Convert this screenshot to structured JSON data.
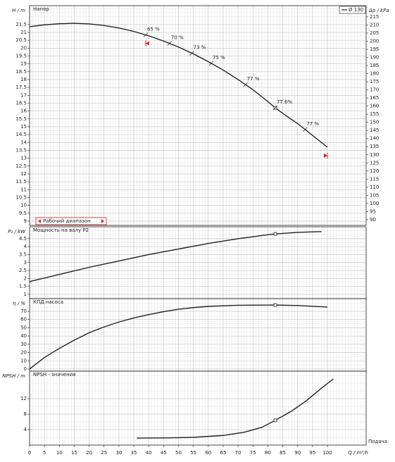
{
  "chart_data": [
    {
      "type": "line",
      "title": "Напор",
      "y_label": "H / m",
      "y2_label": "Δp / kPa",
      "x": [
        0,
        5,
        10,
        15,
        20,
        25,
        30,
        35,
        40,
        45,
        50,
        55,
        60,
        65,
        70,
        75,
        80,
        82.5,
        85,
        90,
        95,
        100
      ],
      "series": [
        {
          "name": "Ø 130",
          "color": "#222222",
          "values": [
            21.36,
            21.48,
            21.55,
            21.58,
            21.54,
            21.44,
            21.28,
            21.06,
            20.78,
            20.45,
            20.07,
            19.63,
            19.14,
            18.6,
            18.0,
            17.35,
            16.6,
            16.2,
            15.85,
            15.2,
            14.45,
            13.7
          ]
        }
      ],
      "ylim": [
        8.73,
        22.7
      ],
      "yticks": [
        9,
        9.5,
        10,
        10.5,
        11,
        11.5,
        12,
        12.5,
        13,
        13.5,
        14,
        14.5,
        15,
        15.5,
        16,
        16.5,
        17,
        17.5,
        18,
        18.5,
        19,
        19.5,
        20,
        20.5,
        21,
        21.5
      ],
      "y2lim": [
        86.5,
        221.9
      ],
      "y2ticks": [
        90,
        95,
        100,
        105,
        110,
        115,
        120,
        125,
        130,
        135,
        140,
        145,
        150,
        155,
        160,
        165,
        170,
        175,
        180,
        185,
        190,
        195,
        200,
        205,
        210,
        215
      ],
      "annotations": [
        {
          "text": "65 %",
          "x": 39
        },
        {
          "text": "70 %",
          "x": 47
        },
        {
          "text": "73 %",
          "x": 54.5
        },
        {
          "text": "75 %",
          "x": 61
        },
        {
          "text": "77 %",
          "x": 72.5
        },
        {
          "text": "77.6%",
          "x": 82.5
        },
        {
          "text": "77 %",
          "x": 92.5
        }
      ],
      "operating_range": {
        "label": "Рабочий диапазон",
        "x": [
          39,
          100
        ],
        "color": "#e02020"
      },
      "duty_point": 82.5,
      "grid": true,
      "minor_grid": true
    },
    {
      "type": "line",
      "title": "Мощность на валу P2",
      "y_label": "P₂ / kW",
      "x": [
        0,
        10,
        20,
        30,
        40,
        50,
        60,
        70,
        80,
        82.5,
        90,
        98
      ],
      "series": [
        {
          "color": "#222222",
          "values": [
            1.8,
            2.25,
            2.7,
            3.1,
            3.5,
            3.85,
            4.2,
            4.5,
            4.75,
            4.8,
            4.9,
            4.95
          ]
        }
      ],
      "ylim": [
        0.73,
        5.25
      ],
      "yticks": [
        1,
        1.5,
        2,
        2.5,
        3,
        3.5,
        4,
        4.5
      ],
      "duty_point": 82.5,
      "grid": true,
      "minor_grid": true
    },
    {
      "type": "line",
      "title": "КПД насоса",
      "y_label": "η / %",
      "x": [
        0,
        5,
        10,
        15,
        20,
        25,
        30,
        35,
        40,
        45,
        50,
        55,
        60,
        70,
        82.5,
        90,
        100
      ],
      "series": [
        {
          "color": "#222222",
          "values": [
            0,
            14,
            25,
            35,
            44,
            51,
            57,
            62,
            66,
            69.5,
            72.5,
            74.5,
            76,
            77.3,
            77.6,
            77,
            75.2
          ]
        }
      ],
      "ylim": [
        -2.6,
        85.4
      ],
      "yticks": [
        0,
        10,
        20,
        30,
        40,
        50,
        60,
        70
      ],
      "duty_point": 82.5,
      "grid": true,
      "minor_grid": true
    },
    {
      "type": "line",
      "title": "NPSH - значения",
      "y_label": "NPSH / m",
      "x_label": "Q / m³/h",
      "x_caption": "Подача",
      "x": [
        36,
        45,
        55,
        65,
        72,
        78,
        82.5,
        88,
        93,
        98,
        102
      ],
      "series": [
        {
          "color": "#222222",
          "values": [
            1.8,
            1.85,
            2.0,
            2.5,
            3.3,
            4.6,
            6.4,
            8.8,
            11.5,
            14.7,
            17.1
          ]
        }
      ],
      "ylim": [
        0,
        19.1
      ],
      "yticks": [
        4,
        8,
        12
      ],
      "xlim": [
        0,
        113
      ],
      "xticks": [
        0,
        5,
        10,
        15,
        20,
        25,
        30,
        35,
        40,
        45,
        50,
        55,
        60,
        65,
        70,
        75,
        80,
        85,
        90,
        95,
        100
      ],
      "duty_point": 82.5,
      "grid": true,
      "minor_grid": true
    }
  ]
}
